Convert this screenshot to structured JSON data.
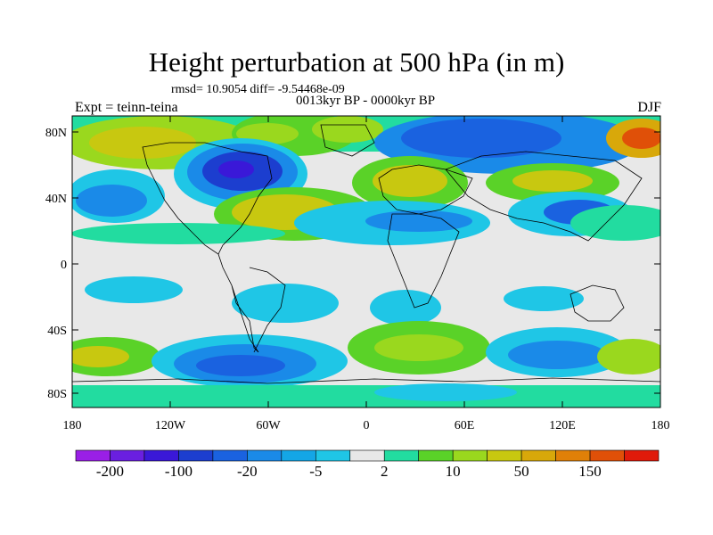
{
  "title": "Height perturbation at 500 hPa (in m)",
  "stats": "rmsd= 10.9054 diff= -9.54468e-09",
  "period": "0013kyr BP - 0000kyr BP",
  "experiment": "Expt = teinn-teina",
  "season": "DJF",
  "lat_ticks": [
    "80N",
    "40N",
    "0",
    "40S",
    "80S"
  ],
  "lon_ticks": [
    "180",
    "120W",
    "60W",
    "0",
    "60E",
    "120E",
    "180"
  ],
  "colorbar": {
    "colors": [
      "#9a1fe6",
      "#6a1fe0",
      "#3a18d8",
      "#1c3ecf",
      "#1a62e0",
      "#1a8ae8",
      "#14a6e6",
      "#1fc6e6",
      "#e8e8e8",
      "#22dca0",
      "#5ad228",
      "#9ad81e",
      "#c8c810",
      "#d8a80a",
      "#e08008",
      "#e05008",
      "#e01a0a"
    ],
    "labels": [
      "-200",
      "-100",
      "-20",
      "-5",
      "2",
      "10",
      "50",
      "150"
    ]
  }
}
